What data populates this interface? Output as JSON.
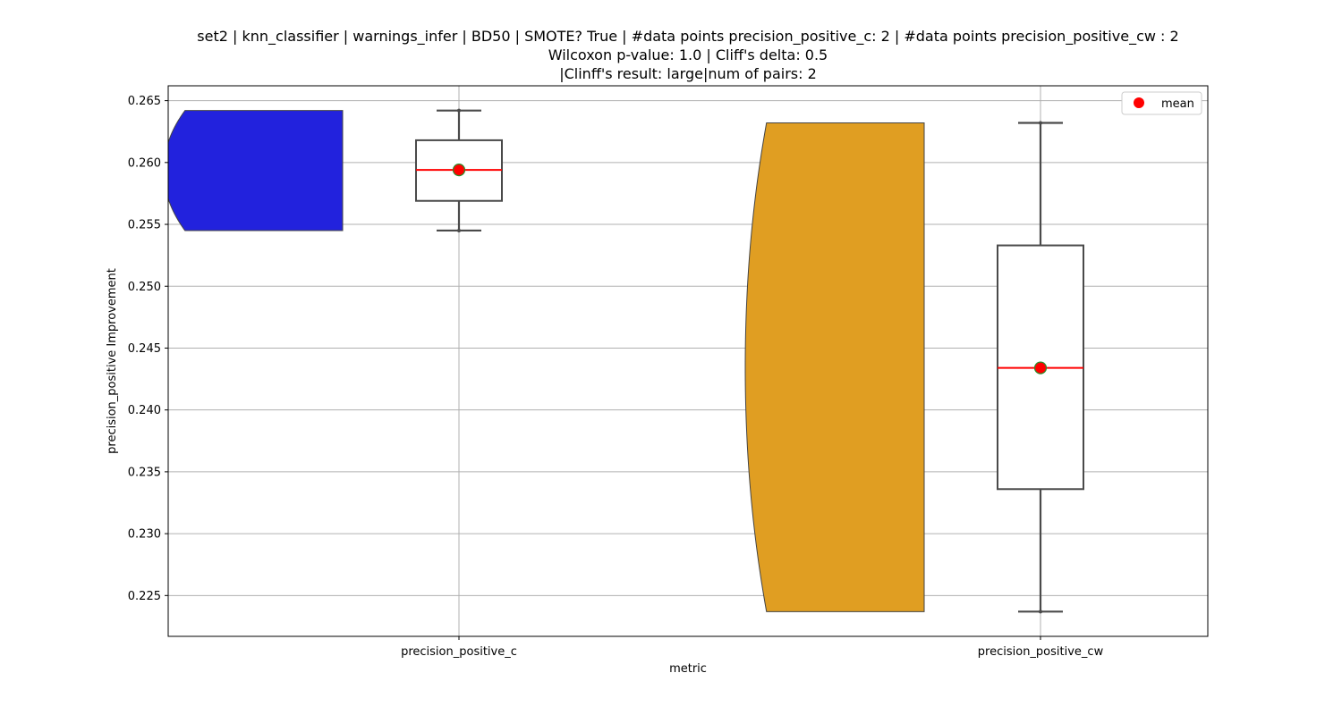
{
  "title_lines": [
    "set2 | knn_classifier | warnings_infer | BD50 | SMOTE? True | #data points precision_positive_c: 2 | #data points precision_positive_cw : 2",
    "Wilcoxon p-value: 1.0 | Cliff's delta: 0.5",
    "|Clinff's result: large|num of pairs: 2"
  ],
  "chart_data": {
    "type": "box",
    "xlabel": "metric",
    "ylabel": "precision_positive Improvement",
    "categories": [
      "precision_positive_c",
      "precision_positive_cw"
    ],
    "ylim": [
      0.2217,
      0.2662
    ],
    "yticks": [
      0.225,
      0.23,
      0.235,
      0.24,
      0.245,
      0.25,
      0.255,
      0.26,
      0.265
    ],
    "ytick_labels": [
      "0.225",
      "0.230",
      "0.235",
      "0.240",
      "0.245",
      "0.250",
      "0.255",
      "0.260",
      "0.265"
    ],
    "grid": true,
    "legend": {
      "placement": "top-right",
      "entries": [
        "mean"
      ]
    },
    "series": [
      {
        "category": "precision_positive_c",
        "values": [
          0.2545,
          0.2642
        ],
        "box": {
          "min": 0.2545,
          "q1": 0.2569,
          "median": 0.2594,
          "q3": 0.2618,
          "max": 0.2642
        },
        "mean": 0.2594,
        "violin_color": "#2222dd"
      },
      {
        "category": "precision_positive_cw",
        "values": [
          0.2237,
          0.2632
        ],
        "box": {
          "min": 0.2237,
          "q1": 0.2336,
          "median": 0.2434,
          "q3": 0.2533,
          "max": 0.2632
        },
        "mean": 0.2434,
        "violin_color": "#e09e22"
      }
    ],
    "colors": {
      "median": "#ff0000",
      "mean_marker": "#ff0000",
      "mean_edge": "#2a8c2a",
      "box_edge": "#4a4a4a",
      "grid": "#b0b0b0"
    }
  }
}
